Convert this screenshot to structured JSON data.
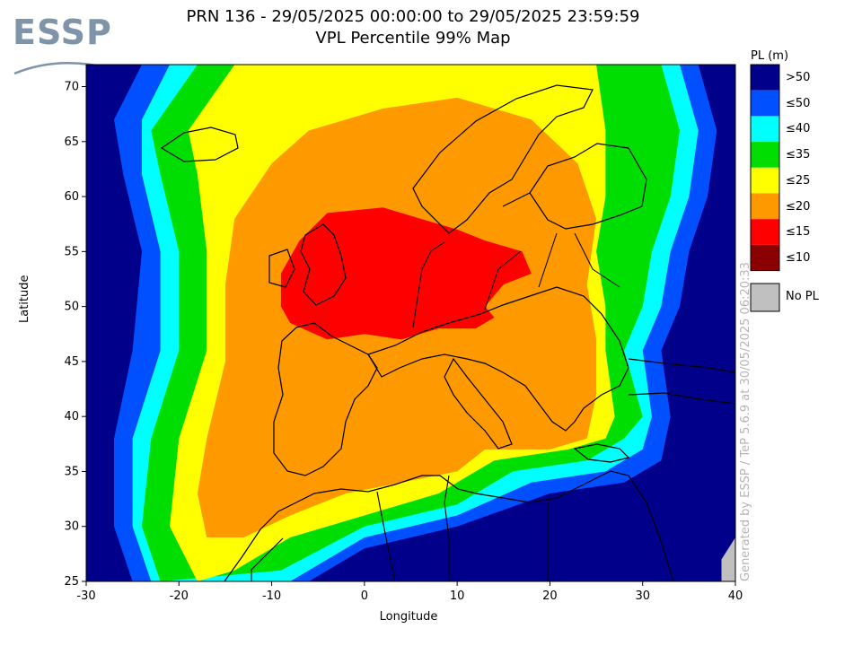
{
  "logo": {
    "text": "ESSP",
    "color": "#7f94a8"
  },
  "title": {
    "line1": "PRN 136 - 29/05/2025 00:00:00 to 29/05/2025 23:59:59",
    "line2": "VPL Percentile 99% Map"
  },
  "axes": {
    "xlabel": "Longitude",
    "ylabel": "Latitude",
    "xlim": [
      -30,
      40
    ],
    "ylim": [
      25,
      72
    ],
    "xticks": [
      -30,
      -20,
      -10,
      0,
      10,
      20,
      30,
      40
    ],
    "yticks": [
      25,
      30,
      35,
      40,
      45,
      50,
      55,
      60,
      65,
      70
    ]
  },
  "legend": {
    "title": "PL (m)",
    "items": [
      {
        "label": ">50",
        "color": "#00008b"
      },
      {
        "label": "≤50",
        "color": "#0050ff"
      },
      {
        "label": "≤40",
        "color": "#00ffff"
      },
      {
        "label": "≤35",
        "color": "#00dd00"
      },
      {
        "label": "≤25",
        "color": "#ffff00"
      },
      {
        "label": "≤20",
        "color": "#ff9900"
      },
      {
        "label": "≤15",
        "color": "#ff0000"
      },
      {
        "label": "≤10",
        "color": "#8b0000"
      }
    ],
    "nopl": {
      "label": "No PL",
      "color": "#c0c0c0"
    }
  },
  "watermark": "Generated by ESSP / TeP 5.6.9 at 30/05/2025 06:20:33",
  "chart_data": {
    "type": "heatmap",
    "description_units": "VPL 99th percentile (m), contour bands by lon/lat",
    "bands": [
      {
        "level": ">50",
        "color": "#00008b",
        "polygon": [
          [
            -30,
            25
          ],
          [
            40,
            25
          ],
          [
            40,
            72
          ],
          [
            -30,
            72
          ]
        ]
      },
      {
        "level": "≤50",
        "color": "#0050ff",
        "polygon": [
          [
            -25,
            25
          ],
          [
            -27,
            30
          ],
          [
            -27,
            38
          ],
          [
            -25,
            46
          ],
          [
            -24,
            55
          ],
          [
            -26,
            62
          ],
          [
            -27,
            67
          ],
          [
            -24,
            72
          ],
          [
            36,
            72
          ],
          [
            38,
            66
          ],
          [
            37,
            60
          ],
          [
            35,
            55
          ],
          [
            34,
            50
          ],
          [
            32,
            46
          ],
          [
            33,
            40
          ],
          [
            32,
            36
          ],
          [
            28,
            34
          ],
          [
            20,
            33
          ],
          [
            10,
            30
          ],
          [
            0,
            28
          ],
          [
            -6,
            25
          ]
        ]
      },
      {
        "level": "≤40",
        "color": "#00ffff",
        "polygon": [
          [
            -23,
            25
          ],
          [
            -25,
            30
          ],
          [
            -25,
            38
          ],
          [
            -22,
            46
          ],
          [
            -22,
            55
          ],
          [
            -24,
            62
          ],
          [
            -24,
            67
          ],
          [
            -21,
            72
          ],
          [
            34,
            72
          ],
          [
            36,
            66
          ],
          [
            35,
            60
          ],
          [
            33,
            55
          ],
          [
            32,
            50
          ],
          [
            30,
            46
          ],
          [
            31,
            40
          ],
          [
            30,
            37
          ],
          [
            26,
            35
          ],
          [
            18,
            34
          ],
          [
            10,
            31
          ],
          [
            0,
            29
          ],
          [
            -8,
            25
          ]
        ]
      },
      {
        "level": "≤35",
        "color": "#00dd00",
        "polygon": [
          [
            -22,
            25
          ],
          [
            -24,
            30
          ],
          [
            -23,
            38
          ],
          [
            -20,
            46
          ],
          [
            -20,
            55
          ],
          [
            -22,
            62
          ],
          [
            -23,
            66
          ],
          [
            -18,
            72
          ],
          [
            32,
            72
          ],
          [
            34,
            66
          ],
          [
            33,
            60
          ],
          [
            31,
            55
          ],
          [
            30,
            50
          ],
          [
            28,
            46
          ],
          [
            30,
            40
          ],
          [
            28,
            38
          ],
          [
            24,
            36
          ],
          [
            16,
            35
          ],
          [
            10,
            32
          ],
          [
            0,
            30
          ],
          [
            -9,
            26
          ]
        ]
      },
      {
        "level": "≤25",
        "color": "#ffff00",
        "polygon": [
          [
            -18,
            25
          ],
          [
            -21,
            30
          ],
          [
            -20,
            38
          ],
          [
            -17,
            46
          ],
          [
            -17,
            55
          ],
          [
            -18,
            62
          ],
          [
            -19,
            66
          ],
          [
            -14,
            72
          ],
          [
            25,
            72
          ],
          [
            26,
            66
          ],
          [
            26,
            60
          ],
          [
            25,
            55
          ],
          [
            26,
            50
          ],
          [
            26,
            46
          ],
          [
            27,
            40
          ],
          [
            26,
            38
          ],
          [
            22,
            37
          ],
          [
            14,
            36
          ],
          [
            8,
            33
          ],
          [
            0,
            31
          ],
          [
            -8,
            29
          ],
          [
            -14,
            26
          ]
        ]
      },
      {
        "level": "≤20",
        "color": "#ff9900",
        "polygon": [
          [
            -17,
            29
          ],
          [
            -18,
            33
          ],
          [
            -17,
            38
          ],
          [
            -15,
            45
          ],
          [
            -15,
            52
          ],
          [
            -14,
            58
          ],
          [
            -10,
            63
          ],
          [
            -6,
            66
          ],
          [
            2,
            68
          ],
          [
            10,
            69
          ],
          [
            18,
            67
          ],
          [
            23,
            63
          ],
          [
            25,
            58
          ],
          [
            24,
            52
          ],
          [
            25,
            47
          ],
          [
            25,
            42
          ],
          [
            24,
            38
          ],
          [
            20,
            37
          ],
          [
            13,
            37
          ],
          [
            10,
            35
          ],
          [
            4,
            34
          ],
          [
            -2,
            33
          ],
          [
            -8,
            31
          ],
          [
            -13,
            29
          ]
        ]
      },
      {
        "level": "≤15",
        "color": "#ff0000",
        "polygon": [
          [
            -9,
            50
          ],
          [
            -9,
            53
          ],
          [
            -7,
            56
          ],
          [
            -4,
            58.5
          ],
          [
            2,
            59
          ],
          [
            6,
            58
          ],
          [
            10,
            57
          ],
          [
            13,
            56
          ],
          [
            17,
            55
          ],
          [
            18,
            53
          ],
          [
            15,
            52
          ],
          [
            13,
            50
          ],
          [
            14,
            49
          ],
          [
            12,
            48
          ],
          [
            8,
            48
          ],
          [
            4,
            47
          ],
          [
            0,
            47.5
          ],
          [
            -4,
            47
          ],
          [
            -8,
            48.5
          ]
        ]
      }
    ],
    "nopl_region": {
      "color": "#c0c0c0",
      "polygon": [
        [
          38.5,
          25
        ],
        [
          40,
          25
        ],
        [
          40,
          29
        ],
        [
          38.5,
          27
        ]
      ]
    }
  }
}
